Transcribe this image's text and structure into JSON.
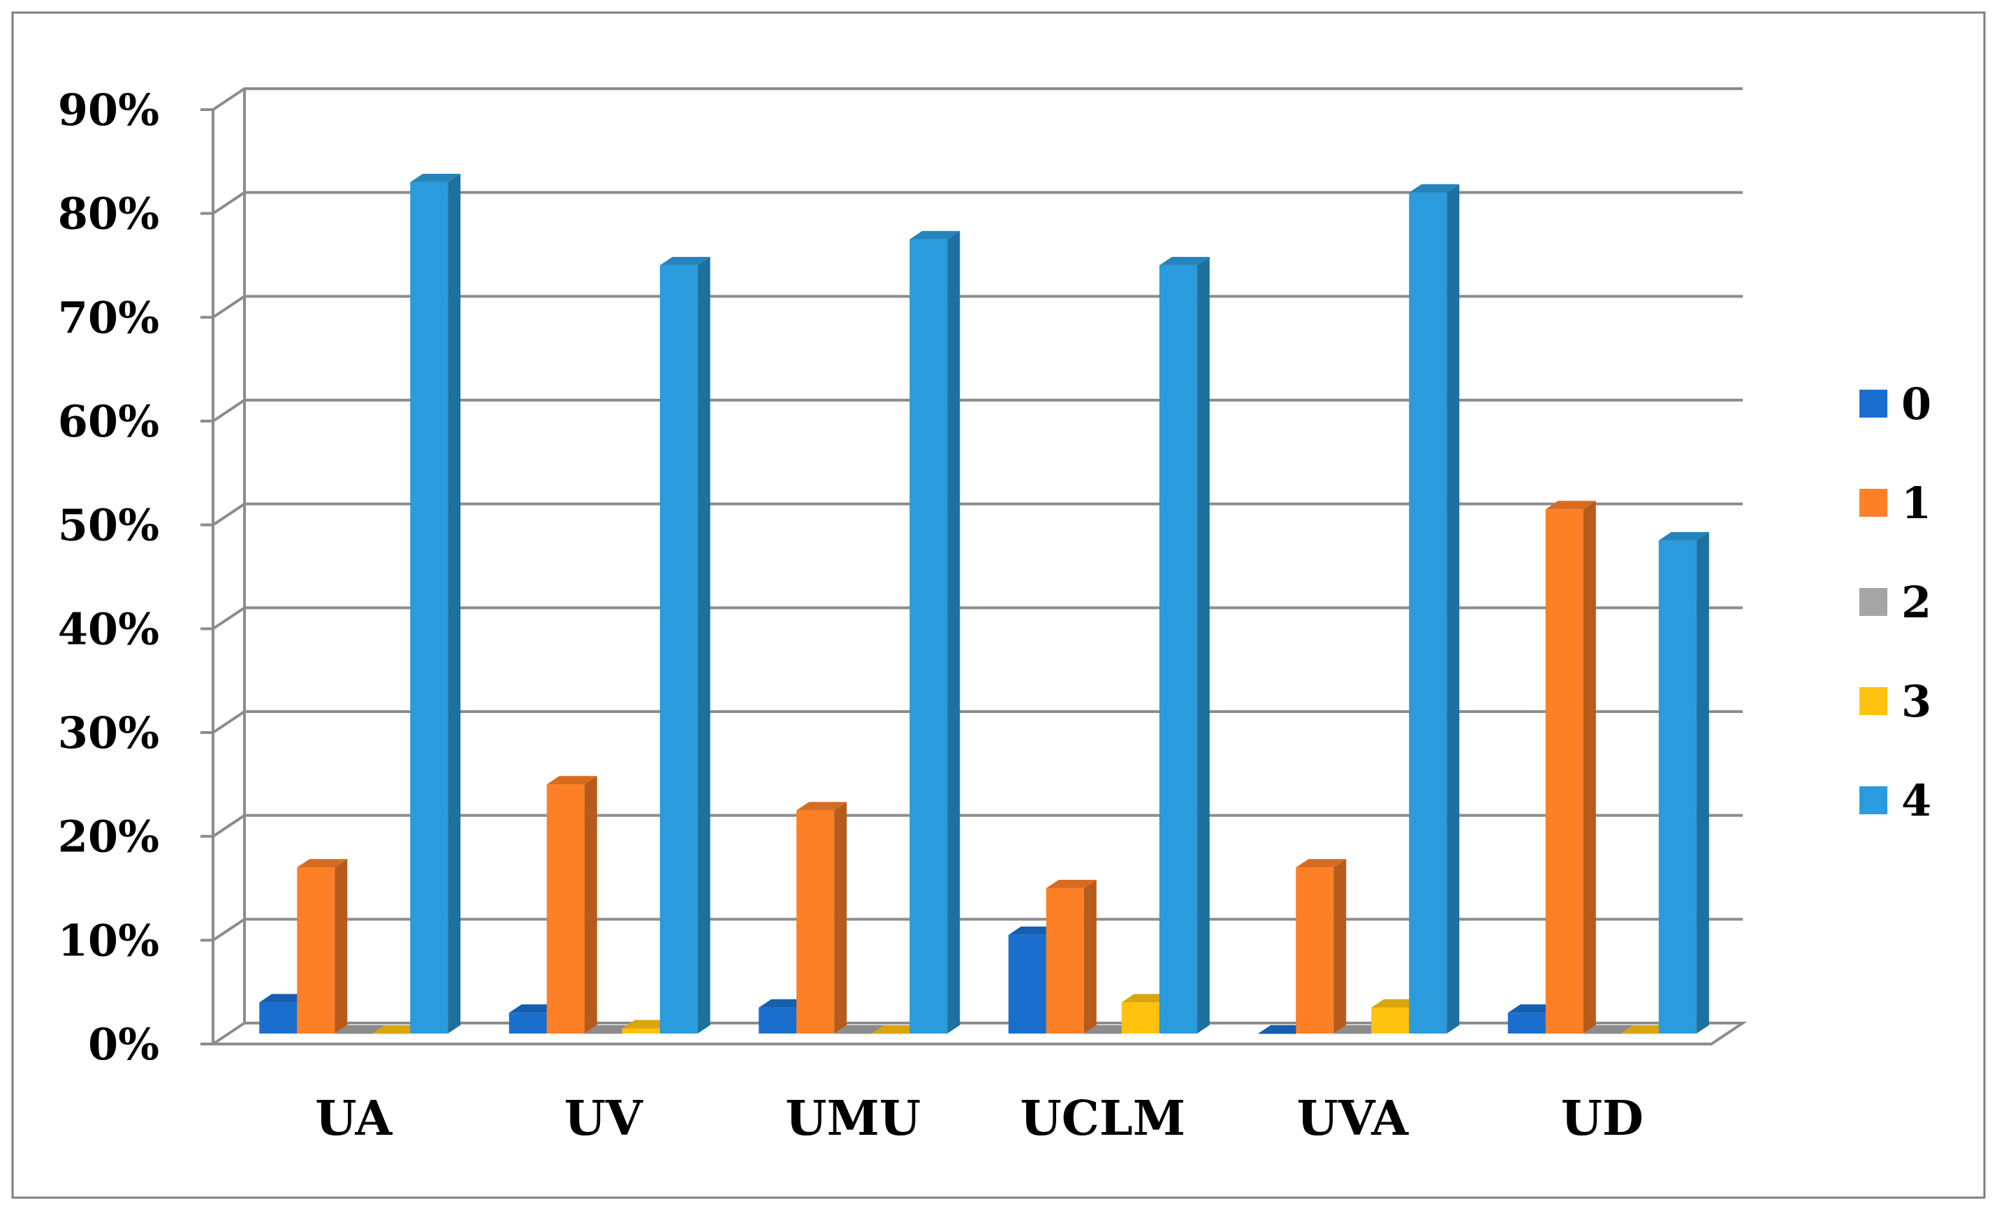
{
  "chart_data": {
    "type": "bar",
    "title": "",
    "xlabel": "",
    "ylabel": "",
    "categories": [
      "UA",
      "UV",
      "UMU",
      "UCLM",
      "UVA",
      "UD"
    ],
    "ylim": [
      0,
      90
    ],
    "yticks": [
      "0%",
      "10%",
      "20%",
      "30%",
      "40%",
      "50%",
      "60%",
      "70%",
      "80%",
      "90%"
    ],
    "grid": true,
    "legend_position": "right",
    "style": "3d-clustered-column",
    "series": [
      {
        "name": "0",
        "color": "#1a6fce",
        "values": [
          3,
          2,
          2.5,
          9.5,
          0,
          2
        ]
      },
      {
        "name": "1",
        "color": "#fd7f26",
        "values": [
          16,
          24,
          21.5,
          14,
          16,
          50.5
        ]
      },
      {
        "name": "2",
        "color": "#a5a5a5",
        "values": [
          0,
          0,
          0,
          0,
          0,
          0
        ]
      },
      {
        "name": "3",
        "color": "#ffc20e",
        "values": [
          0,
          0.5,
          0,
          3,
          2.5,
          0
        ]
      },
      {
        "name": "4",
        "color": "#2a9bdc",
        "values": [
          82,
          74,
          76.5,
          74,
          81,
          47.5
        ]
      }
    ]
  }
}
